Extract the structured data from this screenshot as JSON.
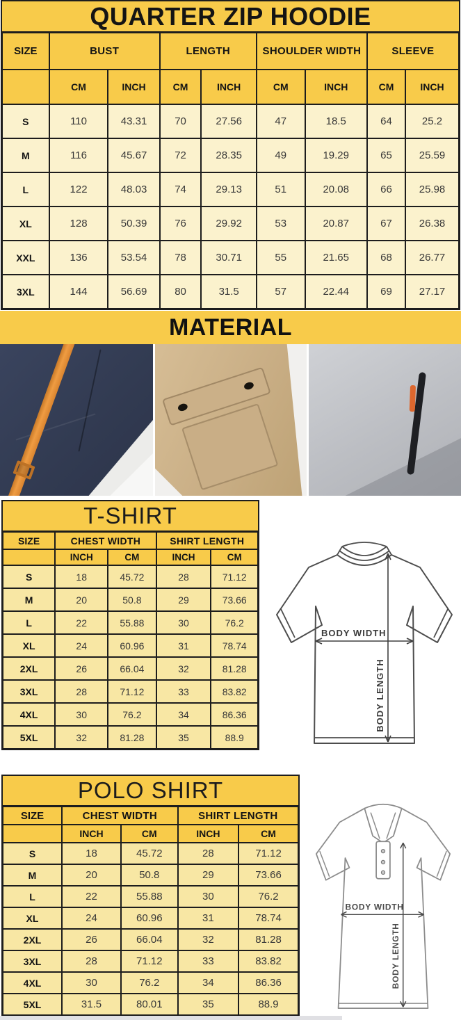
{
  "hoodie_table": {
    "title": "QUARTER ZIP HOODIE",
    "size_header": "SIZE",
    "groups": [
      {
        "label": "BUST"
      },
      {
        "label": "LENGTH"
      },
      {
        "label": "SHOULDER WIDTH"
      },
      {
        "label": "SLEEVE"
      }
    ],
    "unit_headers": [
      "CM",
      "INCH",
      "CM",
      "INCH",
      "CM",
      "INCH",
      "CM",
      "INCH"
    ],
    "rows": [
      {
        "size": "S",
        "values": [
          "110",
          "43.31",
          "70",
          "27.56",
          "47",
          "18.5",
          "64",
          "25.2"
        ]
      },
      {
        "size": "M",
        "values": [
          "116",
          "45.67",
          "72",
          "28.35",
          "49",
          "19.29",
          "65",
          "25.59"
        ]
      },
      {
        "size": "L",
        "values": [
          "122",
          "48.03",
          "74",
          "29.13",
          "51",
          "20.08",
          "66",
          "25.98"
        ]
      },
      {
        "size": "XL",
        "values": [
          "128",
          "50.39",
          "76",
          "29.92",
          "53",
          "20.87",
          "67",
          "26.38"
        ]
      },
      {
        "size": "XXL",
        "values": [
          "136",
          "53.54",
          "78",
          "30.71",
          "55",
          "21.65",
          "68",
          "26.77"
        ]
      },
      {
        "size": "3XL",
        "values": [
          "144",
          "56.69",
          "80",
          "31.5",
          "57",
          "22.44",
          "69",
          "27.17"
        ]
      }
    ]
  },
  "material": {
    "title": "MATERIAL",
    "photos": [
      {
        "name": "navy-fabric-with-orange-strap"
      },
      {
        "name": "khaki-flap-pocket-with-snaps"
      },
      {
        "name": "gray-fleece-with-zipper"
      }
    ]
  },
  "tshirt_table": {
    "title": "T-SHIRT",
    "size_header": "SIZE",
    "groups": [
      {
        "label": "CHEST WIDTH"
      },
      {
        "label": "SHIRT LENGTH"
      }
    ],
    "unit_headers": [
      "INCH",
      "CM",
      "INCH",
      "CM"
    ],
    "rows": [
      {
        "size": "S",
        "values": [
          "18",
          "45.72",
          "28",
          "71.12"
        ]
      },
      {
        "size": "M",
        "values": [
          "20",
          "50.8",
          "29",
          "73.66"
        ]
      },
      {
        "size": "L",
        "values": [
          "22",
          "55.88",
          "30",
          "76.2"
        ]
      },
      {
        "size": "XL",
        "values": [
          "24",
          "60.96",
          "31",
          "78.74"
        ]
      },
      {
        "size": "2XL",
        "values": [
          "26",
          "66.04",
          "32",
          "81.28"
        ]
      },
      {
        "size": "3XL",
        "values": [
          "28",
          "71.12",
          "33",
          "83.82"
        ]
      },
      {
        "size": "4XL",
        "values": [
          "30",
          "76.2",
          "34",
          "86.36"
        ]
      },
      {
        "size": "5XL",
        "values": [
          "32",
          "81.28",
          "35",
          "88.9"
        ]
      }
    ]
  },
  "polo_table": {
    "title": "POLO SHIRT",
    "size_header": "SIZE",
    "groups": [
      {
        "label": "CHEST WIDTH"
      },
      {
        "label": "SHIRT LENGTH"
      }
    ],
    "unit_headers": [
      "INCH",
      "CM",
      "INCH",
      "CM"
    ],
    "rows": [
      {
        "size": "S",
        "values": [
          "18",
          "45.72",
          "28",
          "71.12"
        ]
      },
      {
        "size": "M",
        "values": [
          "20",
          "50.8",
          "29",
          "73.66"
        ]
      },
      {
        "size": "L",
        "values": [
          "22",
          "55.88",
          "30",
          "76.2"
        ]
      },
      {
        "size": "XL",
        "values": [
          "24",
          "60.96",
          "31",
          "78.74"
        ]
      },
      {
        "size": "2XL",
        "values": [
          "26",
          "66.04",
          "32",
          "81.28"
        ]
      },
      {
        "size": "3XL",
        "values": [
          "28",
          "71.12",
          "33",
          "83.82"
        ]
      },
      {
        "size": "4XL",
        "values": [
          "30",
          "76.2",
          "34",
          "86.36"
        ]
      },
      {
        "size": "5XL",
        "values": [
          "31.5",
          "80.01",
          "35",
          "88.9"
        ]
      }
    ]
  },
  "diagrams": {
    "body_width_label": "BODY WIDTH",
    "body_length_label": "BODY LENGTH"
  },
  "colors": {
    "header_yellow": "#f8cb4a",
    "hoodie_row_cream": "#fbf2cd",
    "shirt_row_yellow": "#f8e7a4",
    "border_black": "#1d1d1d",
    "strap_orange": "#ef9c42",
    "zipper_pull_orange": "#dd672e"
  }
}
